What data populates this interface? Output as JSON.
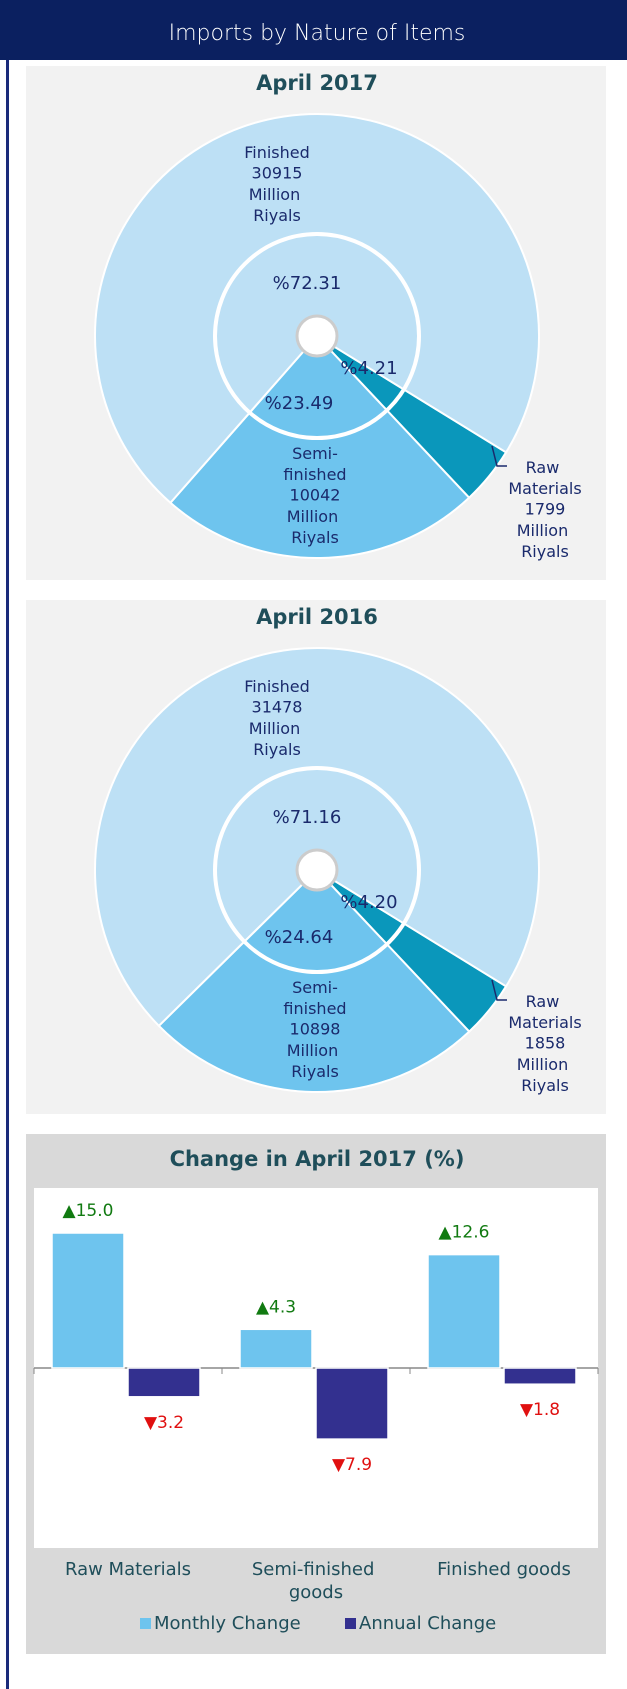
{
  "title": "Imports by Nature of Items",
  "chart_data": [
    {
      "type": "pie",
      "title": "April 2017",
      "categories": [
        "Raw Materials",
        "Semi-finished",
        "Finished"
      ],
      "values": [
        4.21,
        23.49,
        72.31
      ],
      "value_labels": [
        "%4.21",
        "%23.49",
        "%72.31"
      ],
      "amounts": [
        1799,
        10042,
        30915
      ],
      "unit": "Million Riyals",
      "colors": [
        "#0a97bb",
        "#6ec4ee",
        "#bde0f5"
      ]
    },
    {
      "type": "pie",
      "title": "April 2016",
      "categories": [
        "Raw Materials",
        "Semi-finished",
        "Finished"
      ],
      "values": [
        4.2,
        24.64,
        71.16
      ],
      "value_labels": [
        "%4.20",
        "%24.64",
        "%71.16"
      ],
      "amounts": [
        1858,
        10898,
        31478
      ],
      "unit": "Million Riyals",
      "colors": [
        "#0a97bb",
        "#6ec4ee",
        "#bde0f5"
      ]
    },
    {
      "type": "bar",
      "title": "Change in April 2017 (%)",
      "categories": [
        "Raw Materials",
        "Semi-finished goods",
        "Finished goods"
      ],
      "series": [
        {
          "name": "Monthly Change",
          "color": "#6ec4ee",
          "values": [
            15.0,
            4.3,
            12.6
          ],
          "value_labels": [
            "▲15.0",
            "▲4.3",
            "▲12.6"
          ]
        },
        {
          "name": "Annual Change",
          "color": "#33308f",
          "values": [
            -3.2,
            -7.9,
            -1.8
          ],
          "value_labels": [
            "▼3.2",
            "▼7.9",
            "▼1.8"
          ]
        }
      ],
      "ylim": [
        -20,
        20
      ],
      "legend": "bottom"
    }
  ]
}
